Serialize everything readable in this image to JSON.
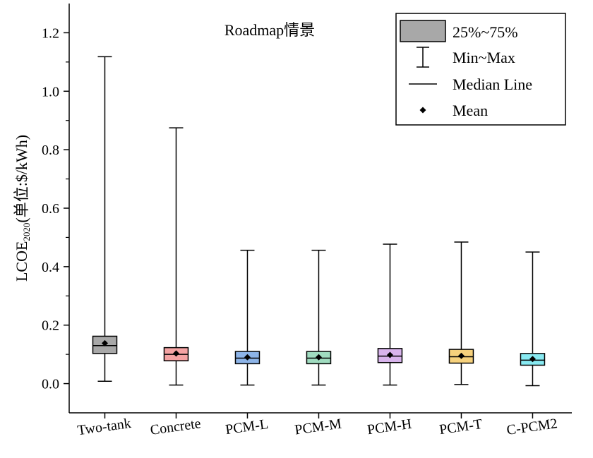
{
  "chart_data": {
    "type": "box",
    "title": "Roadmap情景",
    "ylabel_main": "LCOE",
    "ylabel_sub": "2020",
    "ylabel_rest": "(单位:$/kWh)",
    "xlabel": "",
    "ylim": [
      -0.1,
      1.3
    ],
    "yticks": [
      0.0,
      0.2,
      0.4,
      0.6,
      0.8,
      1.0,
      1.2
    ],
    "ytick_labels": [
      "0.0",
      "0.2",
      "0.4",
      "0.6",
      "0.8",
      "1.0",
      "1.2"
    ],
    "categories": [
      "Two-tank",
      "Concrete",
      "PCM-L",
      "PCM-M",
      "PCM-H",
      "PCM-T",
      "C-PCM2"
    ],
    "boxes": [
      {
        "min": 0.008,
        "q1": 0.103,
        "median": 0.13,
        "q3": 0.162,
        "max": 1.118,
        "mean": 0.138,
        "color": "#a8a8a8"
      },
      {
        "min": -0.005,
        "q1": 0.078,
        "median": 0.1,
        "q3": 0.123,
        "max": 0.875,
        "mean": 0.103,
        "color": "#f4a3a3"
      },
      {
        "min": -0.005,
        "q1": 0.068,
        "median": 0.087,
        "q3": 0.11,
        "max": 0.456,
        "mean": 0.09,
        "color": "#8db4e8"
      },
      {
        "min": -0.005,
        "q1": 0.068,
        "median": 0.087,
        "q3": 0.11,
        "max": 0.456,
        "mean": 0.09,
        "color": "#a0dcc0"
      },
      {
        "min": -0.005,
        "q1": 0.072,
        "median": 0.094,
        "q3": 0.12,
        "max": 0.477,
        "mean": 0.098,
        "color": "#d8b4ec"
      },
      {
        "min": -0.003,
        "q1": 0.07,
        "median": 0.092,
        "q3": 0.117,
        "max": 0.484,
        "mean": 0.095,
        "color": "#f6d17c"
      },
      {
        "min": -0.007,
        "q1": 0.063,
        "median": 0.08,
        "q3": 0.103,
        "max": 0.45,
        "mean": 0.084,
        "color": "#88eaf2"
      }
    ],
    "legend": {
      "position": "top-right",
      "items": [
        {
          "kind": "box",
          "label": "25%~75%",
          "color": "#a8a8a8"
        },
        {
          "kind": "whisker",
          "label": "Min~Max"
        },
        {
          "kind": "line",
          "label": "Median Line"
        },
        {
          "kind": "marker",
          "label": "Mean"
        }
      ]
    },
    "grid": false
  }
}
